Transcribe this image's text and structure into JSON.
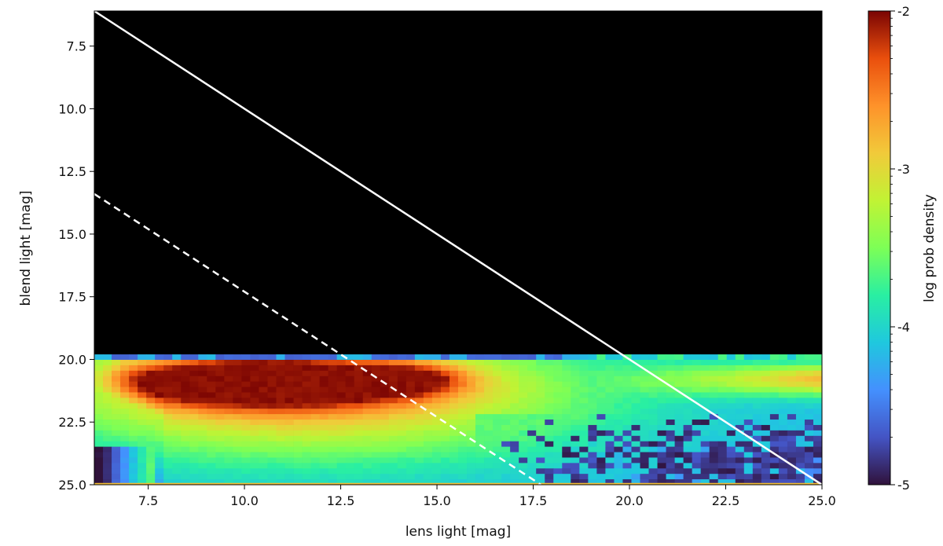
{
  "chart_data": {
    "type": "heatmap",
    "title": "",
    "xlabel": "lens light [mag]",
    "ylabel": "blend light [mag]",
    "xlim": [
      6.1,
      25.0
    ],
    "ylim": [
      25.0,
      6.1
    ],
    "y_inverted": true,
    "x_ticks": [
      "7.5",
      "10.0",
      "12.5",
      "15.0",
      "17.5",
      "20.0",
      "22.5",
      "25.0"
    ],
    "y_ticks": [
      "7.5",
      "10.0",
      "12.5",
      "15.0",
      "17.5",
      "20.0",
      "22.5",
      "25.0"
    ],
    "background_region": {
      "y_range": [
        6.1,
        19.8
      ],
      "color": "#000000"
    },
    "density_description": "log prob density over blend light 19.8-25.0 mag; peak (~-2.1) near lens 8-13 mag, blend ~20.5-21.5 mag; secondary peak near lens 14.5 mag",
    "peak_value": -2.1,
    "colorbar": {
      "label": "log prob density",
      "range": [
        -5,
        -2
      ],
      "ticks": [
        "-2",
        "-3",
        "-4",
        "-5"
      ],
      "colormap": "turbo"
    },
    "lines": [
      {
        "style": "solid",
        "color": "#ffffff",
        "points": [
          [
            6.1,
            6.1
          ],
          [
            25.0,
            25.0
          ]
        ]
      },
      {
        "style": "dashed",
        "color": "#ffffff",
        "points": [
          [
            6.1,
            13.4
          ],
          [
            17.7,
            25.0
          ]
        ]
      }
    ],
    "grid": false
  }
}
